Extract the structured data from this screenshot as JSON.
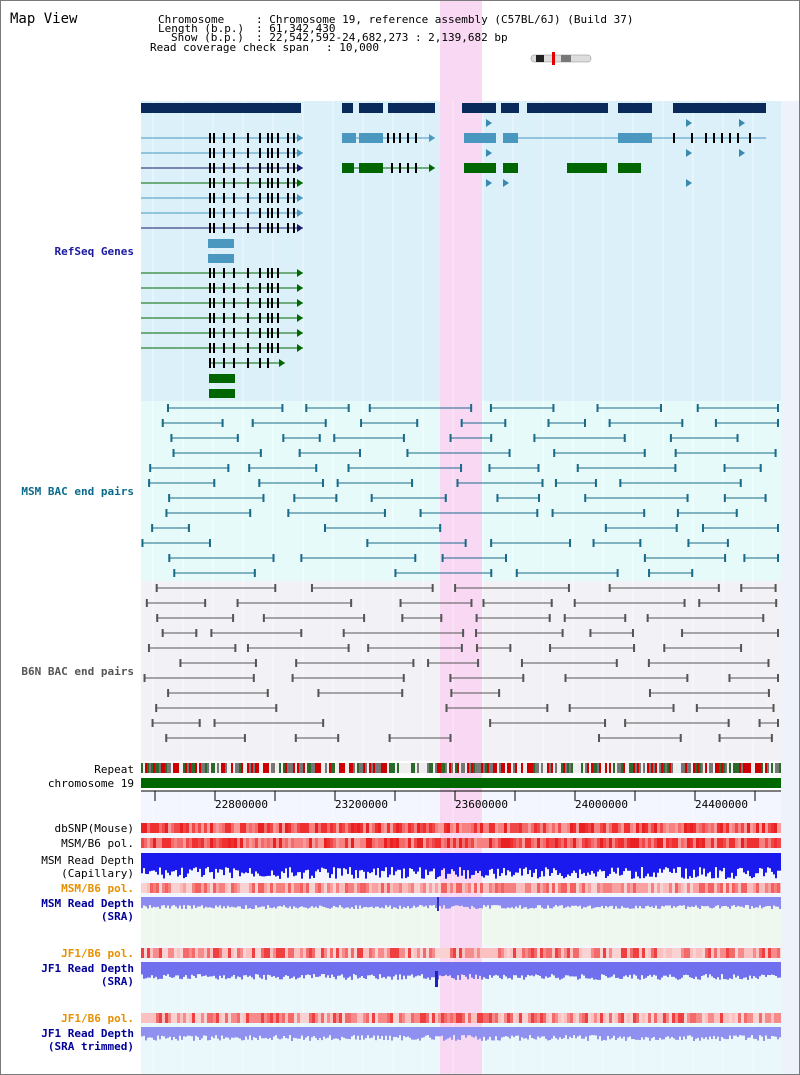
{
  "title": "Map View",
  "header": {
    "chromosome_key": "Chromosome",
    "chromosome_val": ": Chromosome 19, reference assembly (C57BL/6J) (Build 37)",
    "length_key": "Length (b.p.)",
    "length_val": ": 61,342,430",
    "show_key": "Show (b.p.)",
    "show_val": ": 22,542,592-24,682,273 : 2,139,682 bp",
    "span_key": "Read coverage check span",
    "span_val": ": 10,000"
  },
  "tracks": {
    "refseq": "RefSeq Genes",
    "msm_bac": "MSM BAC end pairs",
    "b6n_bac": "B6N BAC end pairs",
    "repeat": "Repeat",
    "chromosome": "chromosome 19",
    "dbsnp": "dbSNP(Mouse)",
    "msm_b6_pol_1": "MSM/B6 pol.",
    "msm_depth_cap_1": "MSM Read Depth",
    "msm_depth_cap_2": "(Capillary)",
    "msm_b6_pol_2": "MSM/B6 pol.",
    "msm_depth_sra_1": "MSM Read Depth",
    "msm_depth_sra_2": "(SRA)",
    "jf1_pol_1": "JF1/B6 pol.",
    "jf1_depth_sra_1": "JF1 Read Depth",
    "jf1_depth_sra_2": "(SRA)",
    "jf1_pol_2": "JF1/B6 pol.",
    "jf1_depth_trim_1": "JF1 Read Depth",
    "jf1_depth_trim_2": "(SRA trimmed)"
  },
  "axis_ticks": [
    "22800000",
    "23200000",
    "23600000",
    "24000000",
    "24400000"
  ],
  "colors": {
    "refseq_bg": "#dcf0fa",
    "msm_bg": "#e6fafa",
    "b6n_bg": "#f2f2f6",
    "highlight": "#f8d8f2",
    "gene_navy": "#0a2a5c",
    "gene_blue": "#4a98c0",
    "gene_green": "#006600",
    "msm_label": "#0a6a8a",
    "b6n_label": "#444444",
    "sra_label": "#000099",
    "pol_orange": "#e89000"
  }
}
